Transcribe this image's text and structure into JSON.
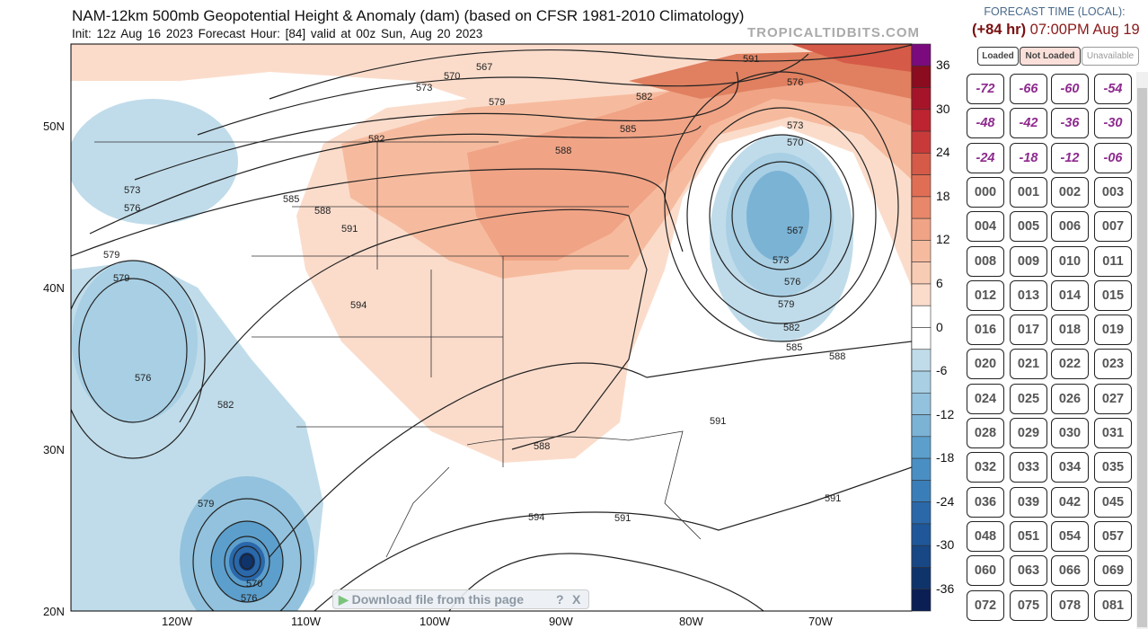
{
  "header": {
    "title": "NAM-12km 500mb Geopotential Height & Anomaly (dam) (based on CFSR 1981-2010 Climatology)",
    "subtitle": "Init: 12z Aug 16 2023   Forecast Hour: [84]   valid at 00z Sun, Aug 20 2023",
    "brand": "TROPICALTIDBITS.COM"
  },
  "map": {
    "lat_labels": [
      "50N",
      "40N",
      "30N",
      "20N"
    ],
    "lon_labels": [
      "120W",
      "110W",
      "100W",
      "90W",
      "80W",
      "70W"
    ],
    "contour_labels": [
      "567",
      "570",
      "573",
      "579",
      "582",
      "585",
      "588",
      "591",
      "594",
      "573",
      "576",
      "579",
      "579",
      "576",
      "582",
      "582",
      "585",
      "588",
      "591",
      "576",
      "573",
      "570",
      "567",
      "573",
      "576",
      "579",
      "582",
      "585",
      "588",
      "591",
      "591",
      "594",
      "588",
      "591",
      "579",
      "576",
      "570"
    ]
  },
  "colorbar": {
    "labels": [
      "36",
      "30",
      "24",
      "18",
      "12",
      "6",
      "0",
      "-6",
      "-12",
      "-18",
      "-24",
      "-30",
      "-36"
    ],
    "colors": [
      "#7b0a7e",
      "#8b0b1f",
      "#a6142a",
      "#bd2330",
      "#c83a3a",
      "#d55a48",
      "#e06e55",
      "#e8876a",
      "#f0a385",
      "#f6bb9e",
      "#f8ccb4",
      "#fbdccb",
      "#ffffff",
      "#ffffff",
      "#c0dcea",
      "#a8cfe4",
      "#92c2dd",
      "#7bb3d5",
      "#5c9fcc",
      "#4a8fc4",
      "#3a7eb9",
      "#2a68aa",
      "#1f579a",
      "#174785",
      "#0f346c",
      "#0b1f55"
    ]
  },
  "panel": {
    "heading": "FORECAST TIME (LOCAL):",
    "hour": "(+84 hr)",
    "time": "07:00PM Aug 19",
    "legend": [
      "Loaded",
      "Not Loaded",
      "Unavailable"
    ],
    "buttons": [
      "-72",
      "-66",
      "-60",
      "-54",
      "-48",
      "-42",
      "-36",
      "-30",
      "-24",
      "-18",
      "-12",
      "-06",
      "000",
      "001",
      "002",
      "003",
      "004",
      "005",
      "006",
      "007",
      "008",
      "009",
      "010",
      "011",
      "012",
      "013",
      "014",
      "015",
      "016",
      "017",
      "018",
      "019",
      "020",
      "021",
      "022",
      "023",
      "024",
      "025",
      "026",
      "027",
      "028",
      "029",
      "030",
      "031",
      "032",
      "033",
      "034",
      "035",
      "036",
      "039",
      "042",
      "045",
      "048",
      "051",
      "054",
      "057",
      "060",
      "063",
      "066",
      "069",
      "072",
      "075",
      "078",
      "081"
    ]
  },
  "download": {
    "label": "Download file from this page",
    "help": "?",
    "close": "X"
  }
}
